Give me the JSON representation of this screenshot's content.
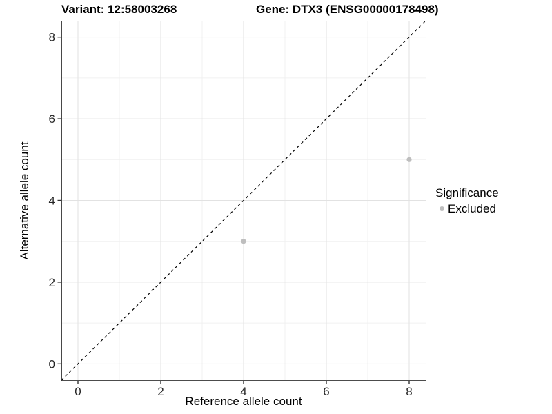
{
  "chart_data": {
    "type": "scatter",
    "title_left": "Variant: 12:58003268",
    "title_right": "Gene: DTX3 (ENSG00000178498)",
    "xlabel": "Reference allele count",
    "ylabel": "Alternative allele count",
    "xlim": [
      -0.4,
      8.4
    ],
    "ylim": [
      -0.4,
      8.4
    ],
    "xticks": [
      0,
      2,
      4,
      6,
      8
    ],
    "yticks": [
      0,
      2,
      4,
      6,
      8
    ],
    "minor_xticks": [
      1,
      3,
      5,
      7
    ],
    "minor_yticks": [
      1,
      3,
      5,
      7
    ],
    "grid": true,
    "series": [
      {
        "name": "Excluded",
        "color": "#bebebe",
        "points": [
          {
            "x": 4,
            "y": 3
          },
          {
            "x": 8,
            "y": 5
          }
        ]
      }
    ],
    "reference_line": {
      "type": "identity",
      "style": "dashed",
      "color": "#000000"
    },
    "legend": {
      "title": "Significance",
      "position": "right",
      "items": [
        {
          "label": "Excluded",
          "color": "#bebebe"
        }
      ]
    },
    "colors": {
      "background": "#ffffff",
      "grid_major": "#e2e2e2",
      "grid_minor": "#f0f0f0",
      "axis_line": "#333333",
      "tick_mark": "#333333",
      "tick_label": "#262626"
    }
  }
}
